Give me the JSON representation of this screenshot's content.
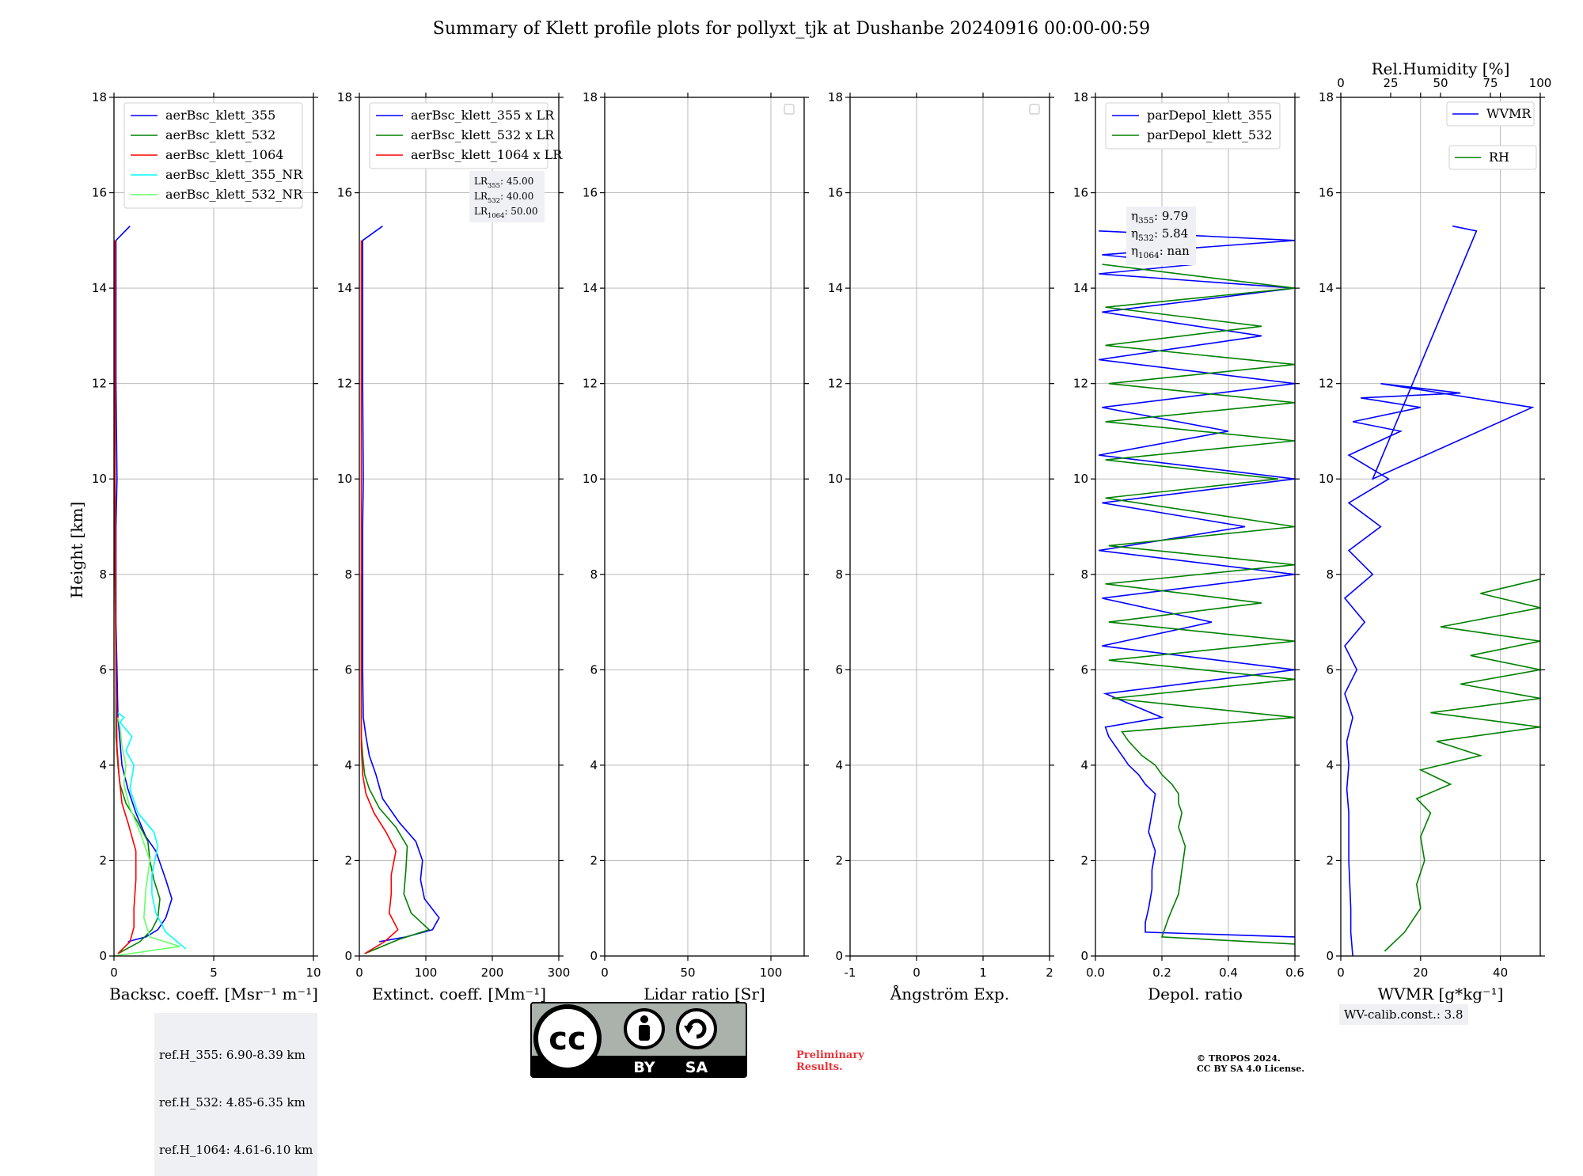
{
  "title": "Summary of Klett profile plots for pollyxt_tjk at Dushanbe 20240916 00:00-00:59",
  "ylabel": "Height [km]",
  "notes": {
    "refH": [
      "ref.H_355: 6.90-8.39 km",
      "ref.H_532: 4.85-6.35 km",
      "ref.H_1064: 4.61-6.10 km"
    ],
    "wv_calib": "WV-calib.const.: 3.8",
    "preliminary": [
      "Preliminary",
      "Results."
    ],
    "copyright": [
      "© TROPOS 2024.",
      "CC BY SA 4.0 License."
    ],
    "cc_badge": {
      "by": "BY",
      "sa": "SA",
      "cc": "cc"
    }
  },
  "chart_data": [
    {
      "type": "line",
      "xlabel": "Backsc. coeff. [Msr⁻¹ m⁻¹]",
      "ylabel": "Height [km]",
      "xlim": [
        0,
        10
      ],
      "ylim": [
        0,
        18
      ],
      "xticks": [
        0,
        5,
        10
      ],
      "yticks": [
        0,
        2,
        4,
        6,
        8,
        10,
        12,
        14,
        16,
        18
      ],
      "grid": true,
      "legend_position": "top-right",
      "series": [
        {
          "name": "aerBsc_klett_355",
          "color": "#0000ff",
          "x": [
            0.7,
            1.6,
            2.2,
            2.6,
            2.9,
            2.6,
            2.1,
            1.6,
            1.1,
            0.7,
            0.4,
            0.3,
            0.2,
            0.15,
            0.1,
            0.1,
            0.1,
            0.15,
            0.1,
            0.1,
            0.1,
            0.8
          ],
          "y": [
            0.3,
            0.4,
            0.55,
            0.8,
            1.2,
            1.6,
            2.2,
            2.5,
            3.0,
            3.5,
            4.0,
            4.5,
            5.0,
            6.0,
            7.0,
            8.0,
            9.0,
            10.0,
            12.0,
            13.0,
            15.0,
            15.3
          ]
        },
        {
          "name": "aerBsc_klett_532",
          "color": "#008000",
          "x": [
            0.2,
            1.3,
            1.9,
            2.2,
            2.3,
            2.0,
            1.8,
            1.7,
            1.2,
            0.6,
            0.3,
            0.2,
            0.1,
            0.1,
            0.05,
            0.05
          ],
          "y": [
            0.05,
            0.3,
            0.55,
            0.8,
            1.2,
            1.6,
            2.0,
            2.4,
            2.8,
            3.2,
            3.6,
            4.0,
            4.6,
            6.0,
            8.0,
            12.0
          ]
        },
        {
          "name": "aerBsc_klett_1064",
          "color": "#ff0000",
          "x": [
            0.2,
            0.8,
            1.0,
            1.0,
            1.1,
            1.1,
            0.7,
            0.4,
            0.25,
            0.15,
            0.1,
            0.05,
            0.05
          ],
          "y": [
            0.05,
            0.3,
            0.6,
            1.0,
            1.6,
            2.2,
            2.8,
            3.2,
            3.8,
            4.4,
            6.0,
            10.0,
            15.0
          ]
        },
        {
          "name": "aerBsc_klett_355_NR",
          "color": "#00ffff",
          "x": [
            3.6,
            2.6,
            2.1,
            1.9,
            1.9,
            2.2,
            2.0,
            1.2,
            0.8,
            1.0,
            0.6,
            0.9,
            0.3,
            0.5,
            0.2
          ],
          "y": [
            0.15,
            0.5,
            0.9,
            1.3,
            1.7,
            2.3,
            2.6,
            3.0,
            3.5,
            4.0,
            4.3,
            4.6,
            4.9,
            5.0,
            5.1
          ]
        },
        {
          "name": "aerBsc_klett_532_NR",
          "color": "#66ff66",
          "x": [
            0.0,
            3.3,
            1.8,
            1.5,
            1.6,
            1.8,
            1.3,
            0.8,
            0.5,
            0.6,
            0.4,
            0.3,
            0.2
          ],
          "y": [
            0.0,
            0.2,
            0.4,
            0.8,
            1.4,
            2.0,
            2.6,
            3.1,
            3.6,
            4.0,
            4.4,
            4.8,
            5.0
          ]
        }
      ]
    },
    {
      "type": "line",
      "xlabel": "Extinct. coeff. [Mm⁻¹]",
      "xlim": [
        0,
        300
      ],
      "ylim": [
        0,
        18
      ],
      "xticks": [
        0,
        100,
        200,
        300
      ],
      "yticks": [
        0,
        2,
        4,
        6,
        8,
        10,
        12,
        14,
        16,
        18
      ],
      "grid": true,
      "legend_position": "top-right",
      "annotation": [
        "LR",
        "355",
        ": 45.00",
        "LR",
        "532",
        ": 40.00",
        "LR",
        "1064",
        ": 50.00"
      ],
      "series": [
        {
          "name": "aerBsc_klett_355 x LR",
          "color": "#0000ff",
          "x": [
            30,
            70,
            110,
            120,
            98,
            92,
            95,
            85,
            60,
            35,
            25,
            15,
            10,
            6,
            5,
            5,
            5,
            6,
            5,
            5,
            5,
            35
          ],
          "y": [
            0.3,
            0.4,
            0.55,
            0.8,
            1.2,
            1.6,
            2.0,
            2.4,
            2.8,
            3.3,
            3.8,
            4.2,
            4.6,
            5.0,
            6.0,
            8.0,
            9.0,
            10.0,
            12.0,
            13.0,
            15.0,
            15.3
          ]
        },
        {
          "name": "aerBsc_klett_532 x LR",
          "color": "#008000",
          "x": [
            8,
            60,
            105,
            78,
            67,
            70,
            72,
            55,
            30,
            15,
            8,
            5,
            3,
            3
          ],
          "y": [
            0.05,
            0.35,
            0.55,
            0.9,
            1.3,
            1.8,
            2.3,
            2.7,
            3.1,
            3.5,
            3.8,
            4.2,
            4.6,
            8.0
          ]
        },
        {
          "name": "aerBsc_klett_1064 x LR",
          "color": "#ff0000",
          "x": [
            8,
            38,
            58,
            45,
            48,
            48,
            55,
            40,
            22,
            10,
            5,
            3,
            3
          ],
          "y": [
            0.05,
            0.3,
            0.55,
            0.9,
            1.3,
            1.7,
            2.2,
            2.6,
            3.0,
            3.4,
            3.8,
            4.4,
            15.0
          ]
        }
      ]
    },
    {
      "type": "line",
      "xlabel": "Lidar ratio [Sr]",
      "xlim": [
        0,
        120
      ],
      "ylim": [
        0,
        18
      ],
      "xticks": [
        0,
        50,
        100
      ],
      "yticks": [
        0,
        2,
        4,
        6,
        8,
        10,
        12,
        14,
        16,
        18
      ],
      "grid": true,
      "legend_position": "top-right",
      "series": []
    },
    {
      "type": "line",
      "xlabel": "Ångström Exp.",
      "xlim": [
        -1,
        2
      ],
      "ylim": [
        0,
        18
      ],
      "xticks": [
        -1,
        0,
        1,
        2
      ],
      "yticks": [
        0,
        2,
        4,
        6,
        8,
        10,
        12,
        14,
        16,
        18
      ],
      "grid": true,
      "legend_position": "top-right",
      "series": []
    },
    {
      "type": "line",
      "xlabel": "Depol. ratio",
      "xlim": [
        0.0,
        0.6
      ],
      "ylim": [
        0,
        18
      ],
      "xticks": [
        0.0,
        0.2,
        0.4,
        0.6
      ],
      "yticks": [
        0,
        2,
        4,
        6,
        8,
        10,
        12,
        14,
        16,
        18
      ],
      "grid": true,
      "legend_position": "top-right",
      "annotation": [
        "η",
        "355",
        ": 9.79",
        "η",
        "532",
        ": 5.84",
        "η",
        "1064",
        ": nan"
      ],
      "series": [
        {
          "name": "parDepol_klett_355",
          "color": "#0000ff",
          "x": [
            0.6,
            0.15,
            0.15,
            0.16,
            0.17,
            0.17,
            0.18,
            0.16,
            0.17,
            0.18,
            0.15,
            0.13,
            0.1,
            0.08,
            0.06,
            0.04,
            0.03,
            0.2,
            0.03,
            0.6,
            0.02,
            0.35,
            0.02,
            0.6,
            0.01,
            0.45,
            0.02,
            0.6,
            0.01,
            0.4,
            0.02,
            0.6,
            0.01,
            0.5,
            0.02,
            0.6,
            0.01,
            0.3,
            0.02,
            0.6,
            0.01
          ],
          "y": [
            0.4,
            0.5,
            0.7,
            1.0,
            1.4,
            1.8,
            2.2,
            2.6,
            3.0,
            3.4,
            3.6,
            3.8,
            4.0,
            4.2,
            4.4,
            4.6,
            4.8,
            5.0,
            5.5,
            6.0,
            6.5,
            7.0,
            7.5,
            8.0,
            8.5,
            9.0,
            9.5,
            10.0,
            10.5,
            11.0,
            11.5,
            12.0,
            12.5,
            13.0,
            13.5,
            14.0,
            14.3,
            14.5,
            14.7,
            15.0,
            15.2
          ]
        },
        {
          "name": "parDepol_klett_532",
          "color": "#008000",
          "x": [
            0.6,
            0.2,
            0.22,
            0.25,
            0.26,
            0.27,
            0.25,
            0.26,
            0.25,
            0.25,
            0.23,
            0.2,
            0.18,
            0.14,
            0.1,
            0.08,
            0.6,
            0.05,
            0.6,
            0.04,
            0.6,
            0.04,
            0.5,
            0.03,
            0.6,
            0.04,
            0.6,
            0.03,
            0.55,
            0.03,
            0.6,
            0.03,
            0.6,
            0.04,
            0.6,
            0.03,
            0.5,
            0.03,
            0.6,
            0.02
          ],
          "y": [
            0.25,
            0.4,
            0.8,
            1.3,
            1.8,
            2.3,
            2.7,
            3.0,
            3.2,
            3.4,
            3.6,
            3.8,
            4.0,
            4.2,
            4.5,
            4.7,
            5.0,
            5.4,
            5.8,
            6.2,
            6.6,
            7.0,
            7.4,
            7.8,
            8.2,
            8.6,
            9.0,
            9.6,
            10.0,
            10.4,
            10.8,
            11.2,
            11.6,
            12.0,
            12.4,
            12.8,
            13.2,
            13.6,
            14.0,
            14.5
          ]
        }
      ]
    },
    {
      "type": "line",
      "xlabel": "WVMR [g*kg⁻¹]",
      "xlim": [
        0,
        50
      ],
      "ylim": [
        0,
        18
      ],
      "xticks": [
        0,
        20,
        40
      ],
      "yticks": [
        0,
        2,
        4,
        6,
        8,
        10,
        12,
        14,
        16,
        18
      ],
      "top_axis": {
        "label": "Rel.Humidity [%]",
        "lim": [
          0,
          100
        ],
        "ticks": [
          0,
          25,
          50,
          75,
          100
        ]
      },
      "grid": true,
      "legend_position": "top-right",
      "series": [
        {
          "name": "WVMR",
          "color": "#0000ff",
          "x": [
            3,
            2.5,
            2.5,
            2,
            2,
            1.5,
            2,
            1.5,
            3,
            1,
            4,
            1,
            6,
            1,
            8,
            2,
            10,
            2,
            12,
            2,
            15,
            3,
            20,
            5,
            30,
            10,
            48,
            8,
            34,
            28
          ],
          "y": [
            0.0,
            0.5,
            1.0,
            2.0,
            3.0,
            3.5,
            4.0,
            4.5,
            5.0,
            5.5,
            6.0,
            6.5,
            7.0,
            7.5,
            8.0,
            8.5,
            9.0,
            9.5,
            10.0,
            10.5,
            11.0,
            11.2,
            11.5,
            11.7,
            11.8,
            12.0,
            11.5,
            10.0,
            15.2,
            15.3
          ]
        },
        {
          "name": "RH",
          "color": "#008000",
          "axis": "top",
          "x": [
            22,
            32,
            40,
            38,
            42,
            40,
            45,
            38,
            55,
            40,
            70,
            48,
            100,
            45,
            100,
            60,
            100,
            65,
            100,
            50,
            100,
            70,
            100
          ],
          "y": [
            0.1,
            0.5,
            1.0,
            1.5,
            2.0,
            2.5,
            3.0,
            3.3,
            3.6,
            3.9,
            4.2,
            4.5,
            4.8,
            5.1,
            5.4,
            5.7,
            6.0,
            6.3,
            6.6,
            6.9,
            7.3,
            7.6,
            7.9
          ]
        }
      ]
    }
  ]
}
